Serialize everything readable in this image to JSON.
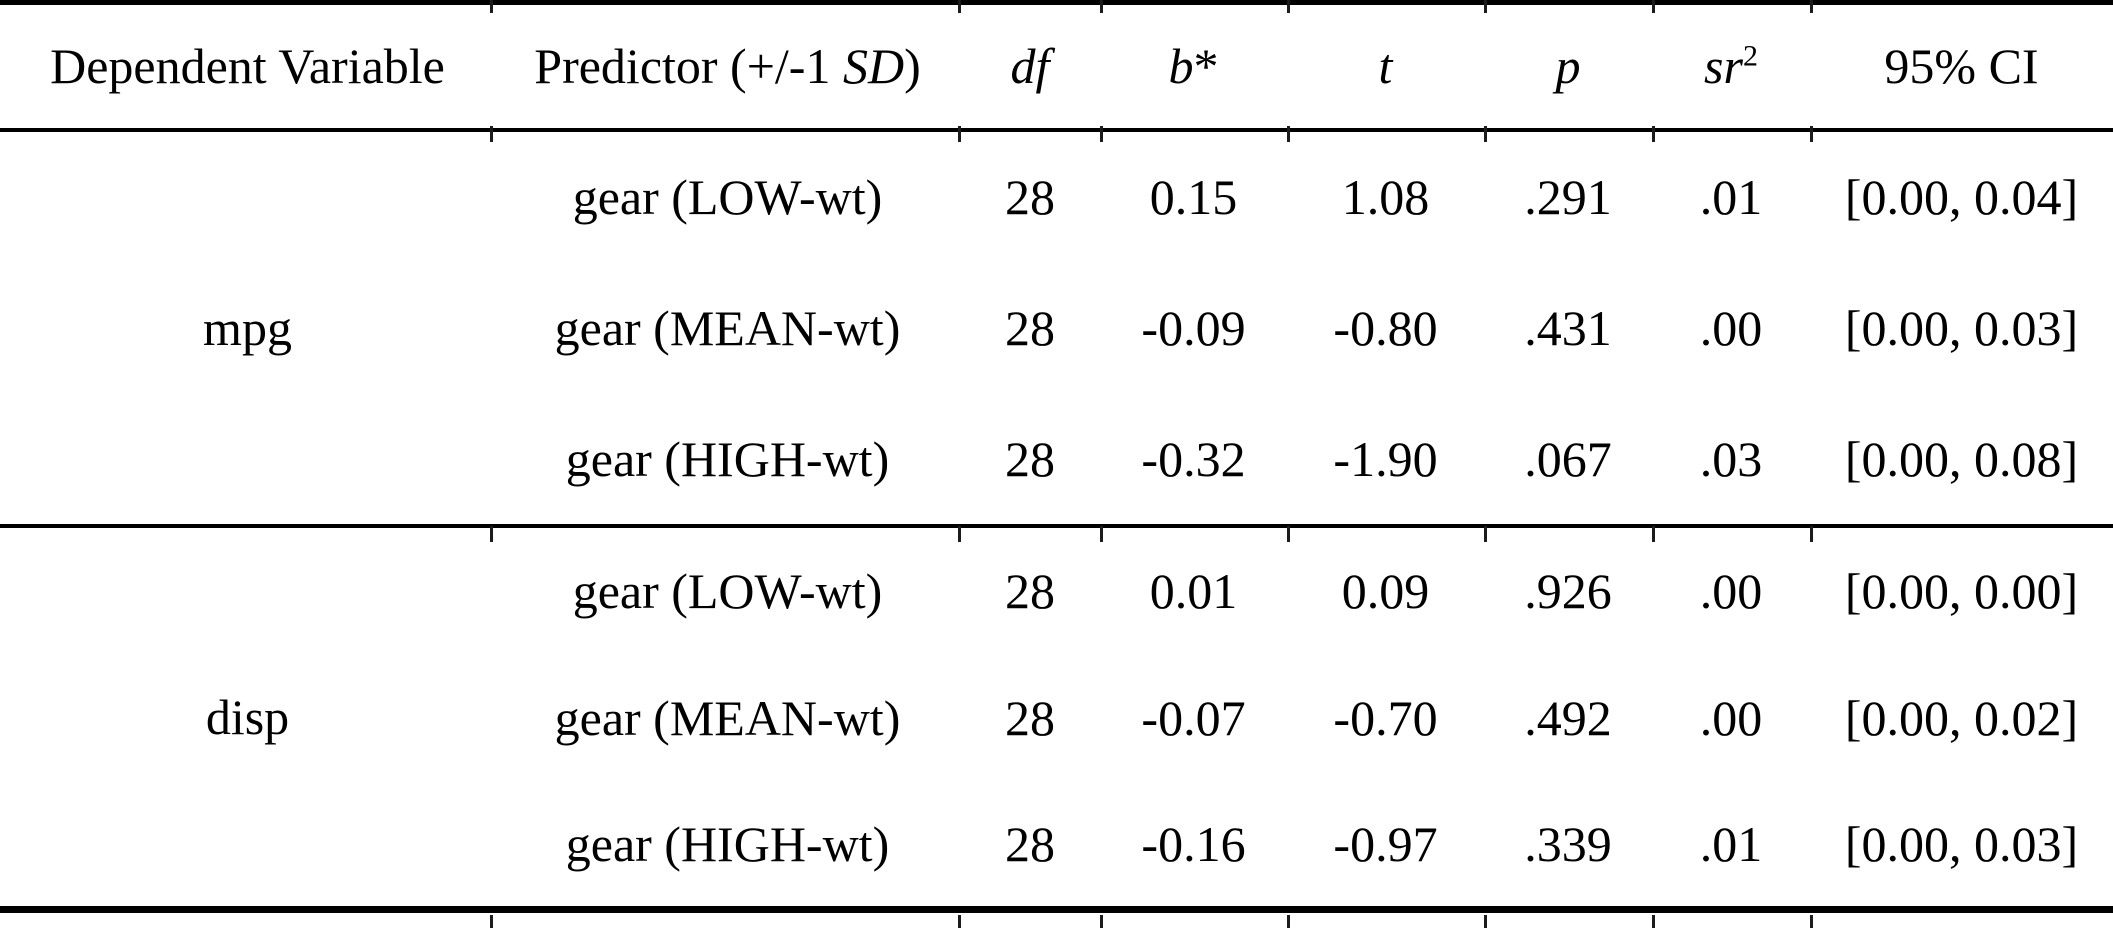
{
  "table": {
    "header": {
      "dependent_variable": "Dependent Variable",
      "predictor_prefix": "Predictor (+/-1 ",
      "predictor_sd": "SD",
      "predictor_suffix": ")",
      "df": "df",
      "b_base": "b",
      "b_mark": "*",
      "t": "t",
      "p": "p",
      "sr_base": "sr",
      "sr_exponent": "2",
      "ci": "95% CI"
    },
    "sections": [
      {
        "dependent_variable": "mpg",
        "rows": [
          {
            "predictor": "gear (LOW-wt)",
            "df": "28",
            "b": "0.15",
            "t": "1.08",
            "p": ".291",
            "sr2": ".01",
            "ci": "[0.00, 0.04]"
          },
          {
            "predictor": "gear (MEAN-wt)",
            "df": "28",
            "b": "-0.09",
            "t": "-0.80",
            "p": ".431",
            "sr2": ".00",
            "ci": "[0.00, 0.03]"
          },
          {
            "predictor": "gear (HIGH-wt)",
            "df": "28",
            "b": "-0.32",
            "t": "-1.90",
            "p": ".067",
            "sr2": ".03",
            "ci": "[0.00, 0.08]"
          }
        ]
      },
      {
        "dependent_variable": "disp",
        "rows": [
          {
            "predictor": "gear (LOW-wt)",
            "df": "28",
            "b": "0.01",
            "t": "0.09",
            "p": ".926",
            "sr2": ".00",
            "ci": "[0.00, 0.00]"
          },
          {
            "predictor": "gear (MEAN-wt)",
            "df": "28",
            "b": "-0.07",
            "t": "-0.70",
            "p": ".492",
            "sr2": ".00",
            "ci": "[0.00, 0.02]"
          },
          {
            "predictor": "gear (HIGH-wt)",
            "df": "28",
            "b": "-0.16",
            "t": "-0.97",
            "p": ".339",
            "sr2": ".01",
            "ci": "[0.00, 0.03]"
          }
        ]
      }
    ]
  },
  "colors": {
    "background": "#ffffff",
    "text": "#000000",
    "rule": "#000000"
  }
}
